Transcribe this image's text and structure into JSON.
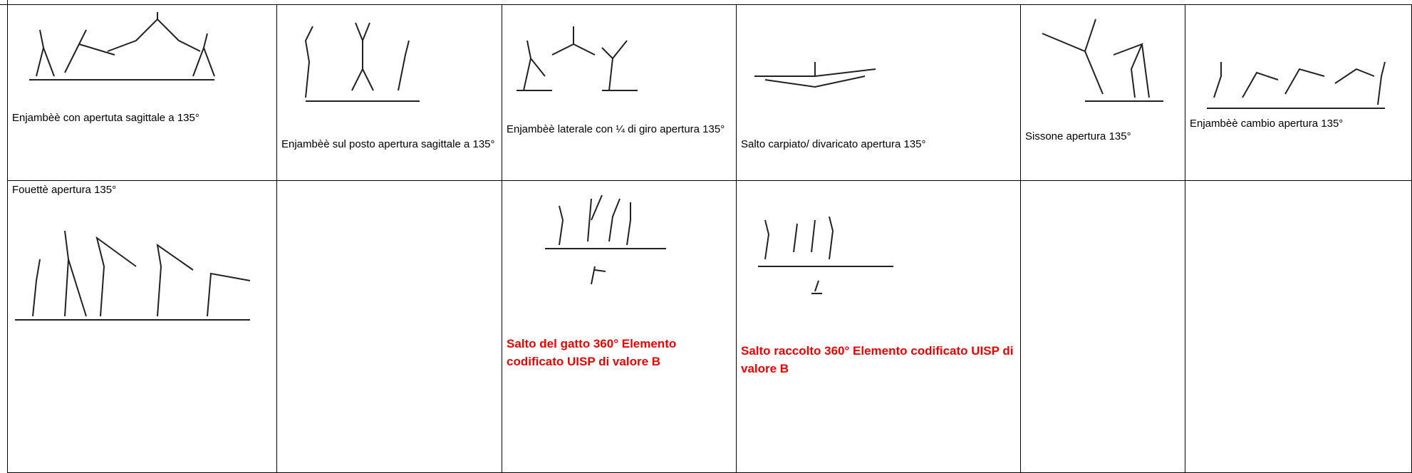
{
  "table": {
    "rows": [
      [
        "Enjambèè con apertuta sagittale a 135°",
        "Enjambèè sul posto apertura sagittale a 135°",
        "Enjambèè laterale con ¼ di giro apertura 135°",
        "Salto carpiato/ divaricato apertura 135°",
        "Sissone apertura 135°",
        "Enjambèè cambio apertura 135°"
      ],
      [
        "Fouettè  apertura 135°",
        "Salto del gatto 360° Elemento codificato UISP di valore B",
        "Salto raccolto 360° Elemento codificato UISP di valore B"
      ]
    ]
  }
}
